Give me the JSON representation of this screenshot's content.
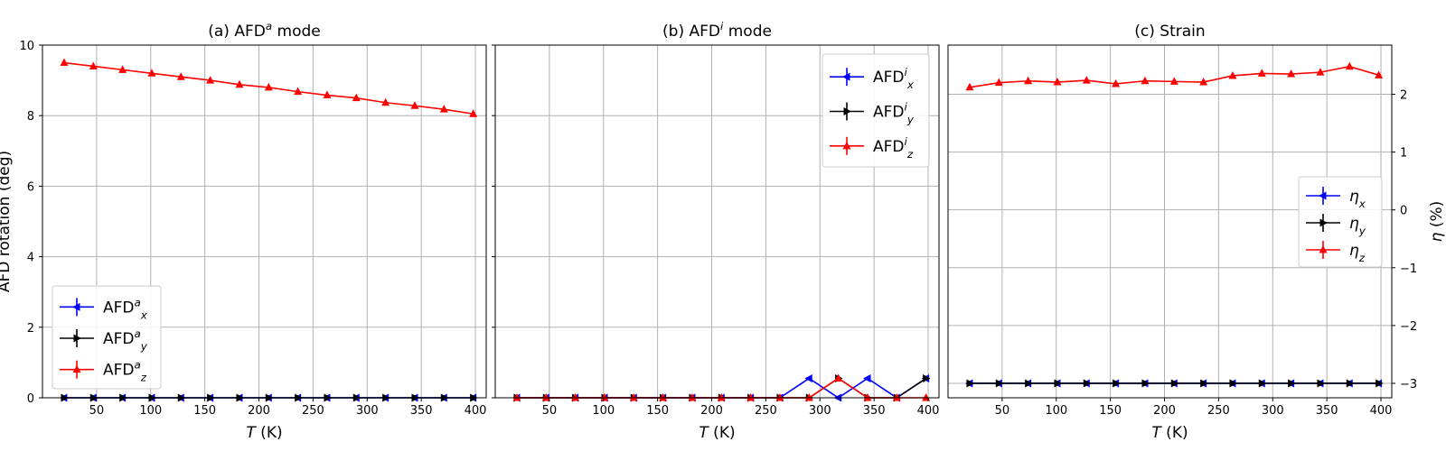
{
  "chart_data": [
    {
      "type": "line",
      "title": "(a) AFD$^a$ mode",
      "xlabel": "$T$ (K)",
      "ylabel": "AFD rotation (deg)",
      "xlim": [
        0,
        410
      ],
      "ylim": [
        0,
        10
      ],
      "xticks": [
        50,
        100,
        150,
        200,
        250,
        300,
        350,
        400
      ],
      "yticks": [
        0,
        2,
        4,
        6,
        8,
        10
      ],
      "grid": true,
      "legend_position": "lower-left",
      "x": [
        20,
        47,
        74,
        101,
        128,
        155,
        182,
        209,
        236,
        263,
        290,
        317,
        344,
        371,
        398
      ],
      "series": [
        {
          "name": "AFD$^a_x$",
          "color": "#0000ff",
          "marker": "triangle-left",
          "values": [
            0,
            0,
            0,
            0,
            0,
            0,
            0,
            0,
            0,
            0,
            0,
            0,
            0,
            0,
            0
          ]
        },
        {
          "name": "AFD$^a_y$",
          "color": "#000000",
          "marker": "triangle-right",
          "values": [
            0,
            0,
            0,
            0,
            0,
            0,
            0,
            0,
            0,
            0,
            0,
            0,
            0,
            0,
            0
          ]
        },
        {
          "name": "AFD$^a_z$",
          "color": "#ff0000",
          "marker": "triangle-up",
          "values": [
            9.5,
            9.4,
            9.3,
            9.2,
            9.1,
            9.0,
            8.88,
            8.8,
            8.68,
            8.58,
            8.5,
            8.37,
            8.28,
            8.18,
            8.05
          ]
        }
      ]
    },
    {
      "type": "line",
      "title": "(b) AFD$^i$ mode",
      "xlabel": "$T$ (K)",
      "ylabel": "",
      "xlim": [
        0,
        410
      ],
      "ylim": [
        0,
        10
      ],
      "xticks": [
        50,
        100,
        150,
        200,
        250,
        300,
        350,
        400
      ],
      "yticks": [
        0,
        2,
        4,
        6,
        8,
        10
      ],
      "grid": true,
      "legend_position": "upper-right",
      "x": [
        20,
        47,
        74,
        101,
        128,
        155,
        182,
        209,
        236,
        263,
        290,
        317,
        344,
        371,
        398
      ],
      "series": [
        {
          "name": "AFD$^i_x$",
          "color": "#0000ff",
          "marker": "triangle-left",
          "values": [
            0,
            0,
            0,
            0,
            0,
            0,
            0,
            0,
            0,
            0,
            0.55,
            0,
            0.55,
            0,
            0.55
          ]
        },
        {
          "name": "AFD$^i_y$",
          "color": "#000000",
          "marker": "triangle-right",
          "values": [
            0,
            0,
            0,
            0,
            0,
            0,
            0,
            0,
            0,
            0,
            0,
            0.55,
            0,
            0,
            0.55
          ]
        },
        {
          "name": "AFD$^i_z$",
          "color": "#ff0000",
          "marker": "triangle-up",
          "values": [
            0,
            0,
            0,
            0,
            0,
            0,
            0,
            0,
            0,
            0,
            0,
            0.55,
            0,
            0,
            0
          ]
        }
      ]
    },
    {
      "type": "line",
      "title": "(c) Strain",
      "xlabel": "$T$ (K)",
      "ylabel": "$\\eta$ (%)",
      "xlim": [
        0,
        410
      ],
      "ylim": [
        -3.25,
        2.85
      ],
      "xticks": [
        50,
        100,
        150,
        200,
        250,
        300,
        350,
        400
      ],
      "yticks": [
        -3,
        -2,
        -1,
        0,
        1,
        2
      ],
      "y_axis_side": "right",
      "grid": true,
      "legend_position": "center-right",
      "x": [
        20,
        47,
        74,
        101,
        128,
        155,
        182,
        209,
        236,
        263,
        290,
        317,
        344,
        371,
        398
      ],
      "series": [
        {
          "name": "$\\eta_x$",
          "color": "#0000ff",
          "marker": "triangle-left",
          "values": [
            -3,
            -3,
            -3,
            -3,
            -3,
            -3,
            -3,
            -3,
            -3,
            -3,
            -3,
            -3,
            -3,
            -3,
            -3
          ]
        },
        {
          "name": "$\\eta_y$",
          "color": "#000000",
          "marker": "triangle-right",
          "values": [
            -3,
            -3,
            -3,
            -3,
            -3,
            -3,
            -3,
            -3,
            -3,
            -3,
            -3,
            -3,
            -3,
            -3,
            -3
          ]
        },
        {
          "name": "$\\eta_z$",
          "color": "#ff0000",
          "marker": "triangle-up",
          "values": [
            2.12,
            2.2,
            2.23,
            2.21,
            2.24,
            2.18,
            2.23,
            2.22,
            2.21,
            2.32,
            2.36,
            2.35,
            2.38,
            2.48,
            2.33
          ]
        }
      ]
    }
  ]
}
